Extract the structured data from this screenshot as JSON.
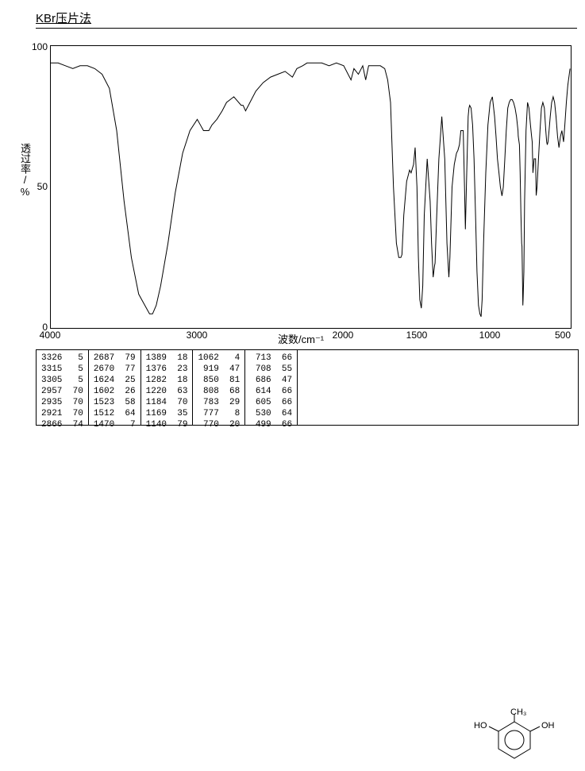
{
  "title": "KBr压片法",
  "chart": {
    "type": "line",
    "y_label": "透过率/%",
    "x_label": "波数/cm⁻¹",
    "y_ticks": [
      0,
      50,
      100
    ],
    "x_ticks": [
      4000,
      3000,
      2000,
      1500,
      1000,
      500
    ],
    "xlim": [
      4000,
      450
    ],
    "ylim": [
      0,
      100
    ],
    "background_color": "#ffffff",
    "line_color": "#000000",
    "line_width": 1,
    "spectrum_points": [
      [
        4000,
        94
      ],
      [
        3950,
        94
      ],
      [
        3900,
        93
      ],
      [
        3850,
        92
      ],
      [
        3800,
        93
      ],
      [
        3750,
        93
      ],
      [
        3700,
        92
      ],
      [
        3650,
        90
      ],
      [
        3600,
        85
      ],
      [
        3550,
        70
      ],
      [
        3500,
        45
      ],
      [
        3450,
        25
      ],
      [
        3400,
        12
      ],
      [
        3326,
        5
      ],
      [
        3315,
        5
      ],
      [
        3305,
        5
      ],
      [
        3280,
        8
      ],
      [
        3250,
        15
      ],
      [
        3200,
        30
      ],
      [
        3150,
        48
      ],
      [
        3100,
        62
      ],
      [
        3050,
        70
      ],
      [
        3000,
        74
      ],
      [
        2957,
        70
      ],
      [
        2935,
        70
      ],
      [
        2921,
        70
      ],
      [
        2900,
        72
      ],
      [
        2866,
        74
      ],
      [
        2830,
        77
      ],
      [
        2800,
        80
      ],
      [
        2750,
        82
      ],
      [
        2700,
        79
      ],
      [
        2687,
        79
      ],
      [
        2670,
        77
      ],
      [
        2640,
        80
      ],
      [
        2600,
        84
      ],
      [
        2550,
        87
      ],
      [
        2500,
        89
      ],
      [
        2450,
        90
      ],
      [
        2400,
        91
      ],
      [
        2350,
        89
      ],
      [
        2320,
        92
      ],
      [
        2280,
        93
      ],
      [
        2250,
        94
      ],
      [
        2200,
        94
      ],
      [
        2150,
        94
      ],
      [
        2100,
        93
      ],
      [
        2050,
        94
      ],
      [
        2000,
        93
      ],
      [
        1950,
        88
      ],
      [
        1930,
        92
      ],
      [
        1900,
        90
      ],
      [
        1870,
        93
      ],
      [
        1850,
        88
      ],
      [
        1830,
        93
      ],
      [
        1800,
        93
      ],
      [
        1780,
        93
      ],
      [
        1750,
        93
      ],
      [
        1720,
        92
      ],
      [
        1700,
        88
      ],
      [
        1680,
        80
      ],
      [
        1660,
        50
      ],
      [
        1640,
        30
      ],
      [
        1624,
        25
      ],
      [
        1610,
        25
      ],
      [
        1602,
        26
      ],
      [
        1590,
        40
      ],
      [
        1570,
        52
      ],
      [
        1550,
        56
      ],
      [
        1540,
        55
      ],
      [
        1523,
        58
      ],
      [
        1512,
        64
      ],
      [
        1500,
        50
      ],
      [
        1490,
        25
      ],
      [
        1480,
        10
      ],
      [
        1470,
        7
      ],
      [
        1460,
        15
      ],
      [
        1450,
        40
      ],
      [
        1430,
        60
      ],
      [
        1410,
        45
      ],
      [
        1400,
        30
      ],
      [
        1389,
        18
      ],
      [
        1380,
        22
      ],
      [
        1376,
        23
      ],
      [
        1365,
        40
      ],
      [
        1350,
        60
      ],
      [
        1330,
        75
      ],
      [
        1310,
        60
      ],
      [
        1295,
        30
      ],
      [
        1282,
        18
      ],
      [
        1275,
        25
      ],
      [
        1260,
        50
      ],
      [
        1245,
        58
      ],
      [
        1230,
        62
      ],
      [
        1220,
        63
      ],
      [
        1210,
        65
      ],
      [
        1200,
        70
      ],
      [
        1190,
        70
      ],
      [
        1184,
        70
      ],
      [
        1175,
        50
      ],
      [
        1169,
        35
      ],
      [
        1160,
        55
      ],
      [
        1150,
        75
      ],
      [
        1145,
        78
      ],
      [
        1140,
        79
      ],
      [
        1130,
        78
      ],
      [
        1120,
        72
      ],
      [
        1110,
        60
      ],
      [
        1100,
        40
      ],
      [
        1090,
        20
      ],
      [
        1080,
        8
      ],
      [
        1070,
        5
      ],
      [
        1062,
        4
      ],
      [
        1055,
        10
      ],
      [
        1045,
        30
      ],
      [
        1030,
        55
      ],
      [
        1015,
        72
      ],
      [
        1000,
        80
      ],
      [
        985,
        82
      ],
      [
        970,
        75
      ],
      [
        960,
        68
      ],
      [
        950,
        60
      ],
      [
        940,
        55
      ],
      [
        930,
        50
      ],
      [
        920,
        47
      ],
      [
        919,
        47
      ],
      [
        910,
        50
      ],
      [
        900,
        60
      ],
      [
        890,
        70
      ],
      [
        880,
        78
      ],
      [
        870,
        80
      ],
      [
        860,
        81
      ],
      [
        850,
        81
      ],
      [
        840,
        80
      ],
      [
        830,
        78
      ],
      [
        820,
        75
      ],
      [
        810,
        70
      ],
      [
        808,
        68
      ],
      [
        800,
        65
      ],
      [
        795,
        55
      ],
      [
        790,
        40
      ],
      [
        785,
        30
      ],
      [
        783,
        29
      ],
      [
        780,
        20
      ],
      [
        777,
        8
      ],
      [
        775,
        10
      ],
      [
        770,
        20
      ],
      [
        765,
        45
      ],
      [
        755,
        70
      ],
      [
        745,
        80
      ],
      [
        735,
        78
      ],
      [
        725,
        72
      ],
      [
        717,
        68
      ],
      [
        713,
        66
      ],
      [
        710,
        60
      ],
      [
        708,
        55
      ],
      [
        700,
        60
      ],
      [
        690,
        60
      ],
      [
        686,
        47
      ],
      [
        680,
        50
      ],
      [
        670,
        60
      ],
      [
        660,
        70
      ],
      [
        650,
        78
      ],
      [
        640,
        80
      ],
      [
        630,
        78
      ],
      [
        620,
        70
      ],
      [
        614,
        66
      ],
      [
        610,
        65
      ],
      [
        605,
        66
      ],
      [
        598,
        70
      ],
      [
        590,
        75
      ],
      [
        580,
        80
      ],
      [
        570,
        82
      ],
      [
        560,
        80
      ],
      [
        550,
        75
      ],
      [
        540,
        68
      ],
      [
        530,
        64
      ],
      [
        520,
        68
      ],
      [
        510,
        70
      ],
      [
        505,
        68
      ],
      [
        499,
        66
      ],
      [
        490,
        72
      ],
      [
        480,
        80
      ],
      [
        470,
        86
      ],
      [
        460,
        90
      ],
      [
        455,
        92
      ]
    ]
  },
  "peak_table": {
    "columns": [
      [
        [
          3326,
          5
        ],
        [
          3315,
          5
        ],
        [
          3305,
          5
        ],
        [
          2957,
          70
        ],
        [
          2935,
          70
        ],
        [
          2921,
          70
        ],
        [
          2866,
          74
        ]
      ],
      [
        [
          2687,
          79
        ],
        [
          2670,
          77
        ],
        [
          1624,
          25
        ],
        [
          1602,
          26
        ],
        [
          1523,
          58
        ],
        [
          1512,
          64
        ],
        [
          1470,
          7
        ]
      ],
      [
        [
          1389,
          18
        ],
        [
          1376,
          23
        ],
        [
          1282,
          18
        ],
        [
          1220,
          63
        ],
        [
          1184,
          70
        ],
        [
          1169,
          35
        ],
        [
          1140,
          79
        ]
      ],
      [
        [
          1062,
          4
        ],
        [
          919,
          47
        ],
        [
          850,
          81
        ],
        [
          808,
          68
        ],
        [
          783,
          29
        ],
        [
          777,
          8
        ],
        [
          770,
          20
        ]
      ],
      [
        [
          713,
          66
        ],
        [
          708,
          55
        ],
        [
          686,
          47
        ],
        [
          614,
          66
        ],
        [
          605,
          66
        ],
        [
          530,
          64
        ],
        [
          499,
          66
        ]
      ]
    ]
  },
  "molecule": {
    "labels": {
      "oh_left": "HO",
      "oh_right": "OH",
      "ch3": "CH₃"
    }
  }
}
